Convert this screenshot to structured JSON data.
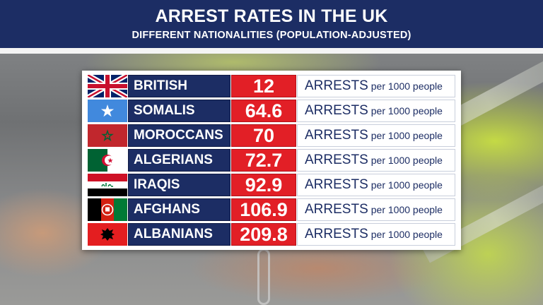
{
  "header": {
    "title": "ARREST RATES IN THE UK",
    "subtitle": "DIFFERENT NATIONALITIES (POPULATION-ADJUSTED)"
  },
  "colors": {
    "header_bg": "#1c2d64",
    "name_cell": "#1c2d64",
    "value_cell": "#e21f26",
    "text_light": "#ffffff"
  },
  "chart_data": {
    "type": "table",
    "title": "ARREST RATES IN THE UK",
    "subtitle": "DIFFERENT NATIONALITIES (POPULATION-ADJUSTED)",
    "unit_main": "ARRESTS",
    "unit_suffix": "per 1000 people",
    "rows": [
      {
        "flag": "uk-flag-icon",
        "name": "BRITISH",
        "value": "12"
      },
      {
        "flag": "somalia-flag-icon",
        "name": "SOMALIS",
        "value": "64.6"
      },
      {
        "flag": "morocco-flag-icon",
        "name": "MOROCCANS",
        "value": "70"
      },
      {
        "flag": "algeria-flag-icon",
        "name": "ALGERIANS",
        "value": "72.7"
      },
      {
        "flag": "iraq-flag-icon",
        "name": "IRAQIS",
        "value": "92.9"
      },
      {
        "flag": "afghanistan-flag-icon",
        "name": "AFGHANS",
        "value": "106.9"
      },
      {
        "flag": "albania-flag-icon",
        "name": "ALBANIANS",
        "value": "209.8"
      }
    ]
  }
}
